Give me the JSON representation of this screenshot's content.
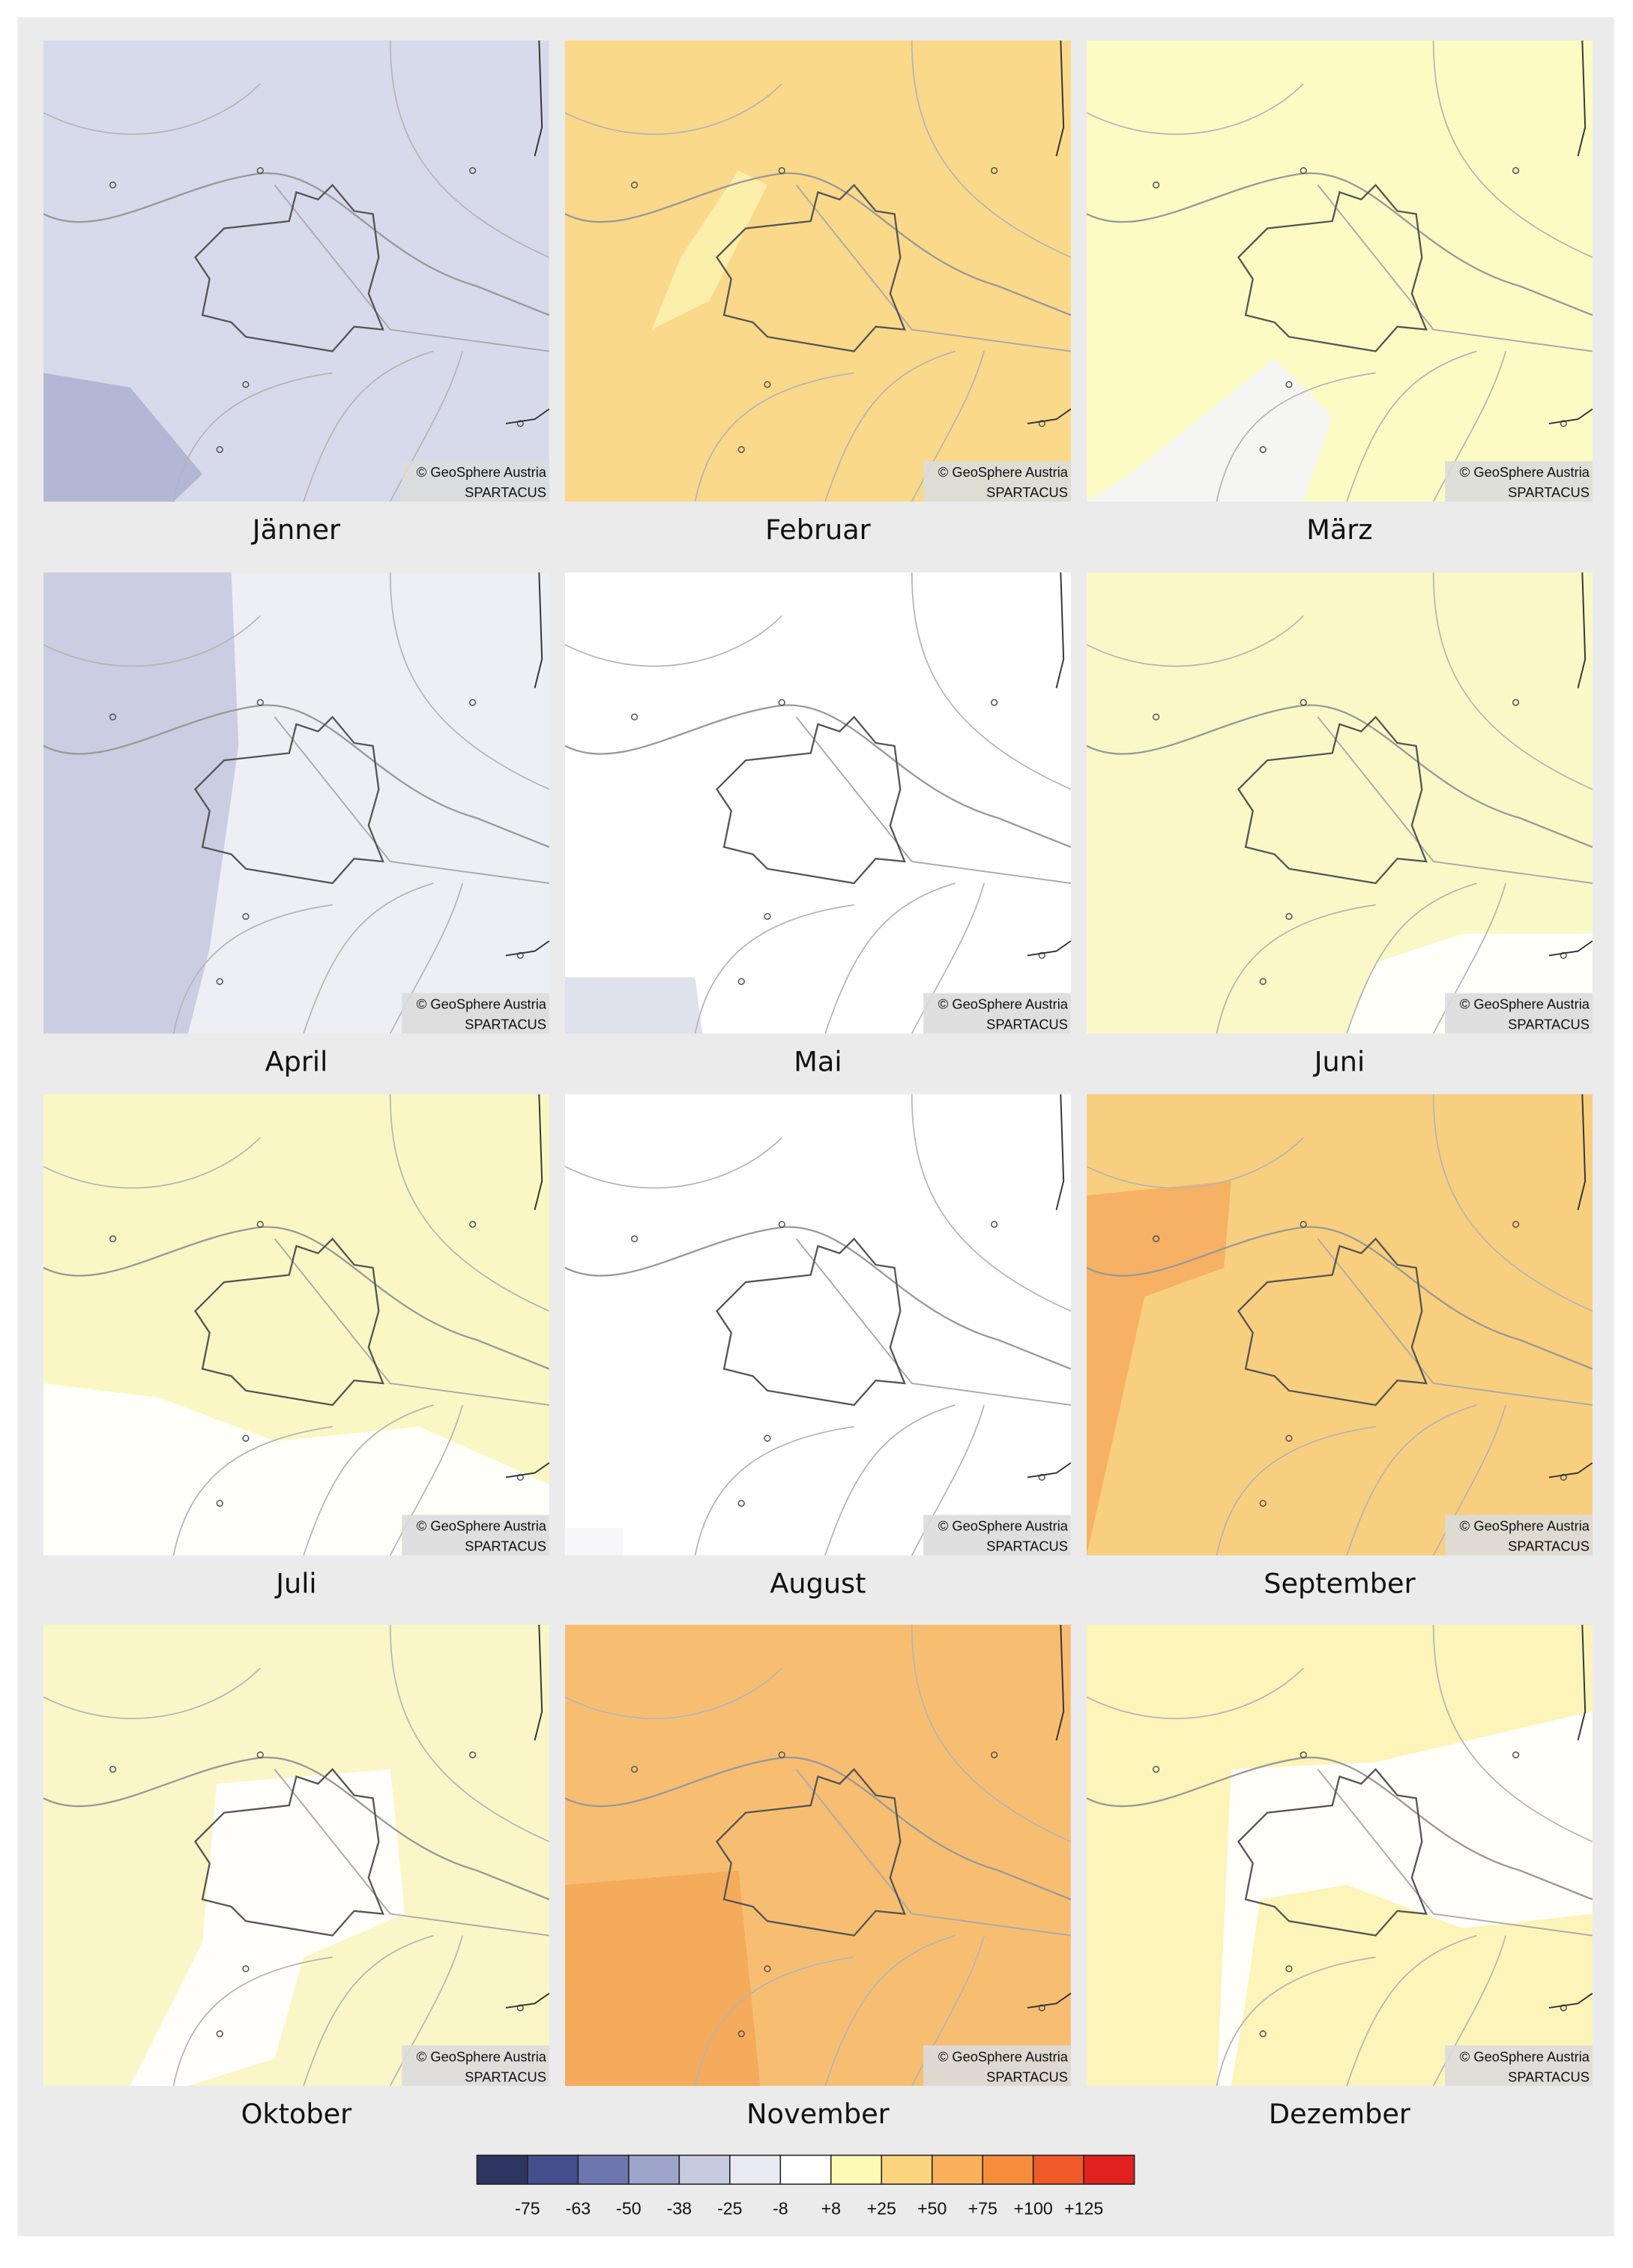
{
  "panels": [
    {
      "label": "Jänner",
      "credit": "© GeoSphere Austria",
      "source": "SPARTACUS",
      "color": "#d7daeb",
      "accent": "#aeb3d4"
    },
    {
      "label": "Februar",
      "credit": "© GeoSphere Austria",
      "source": "SPARTACUS",
      "color": "#fad98a",
      "accent": "#fcf0ae"
    },
    {
      "label": "März",
      "credit": "© GeoSphere Austria",
      "source": "SPARTACUS",
      "color": "#fdfbc4",
      "accent": "#f4f4f8"
    },
    {
      "label": "April",
      "credit": "© GeoSphere Austria",
      "source": "SPARTACUS",
      "color": "#eeeff5",
      "accent": "#c6c9e0"
    },
    {
      "label": "Mai",
      "credit": "© GeoSphere Austria",
      "source": "SPARTACUS",
      "color": "#ffffff",
      "accent": "#dcdeea"
    },
    {
      "label": "Juni",
      "credit": "© GeoSphere Austria",
      "source": "SPARTACUS",
      "color": "#fbf8c8",
      "accent": "#ffffff"
    },
    {
      "label": "Juli",
      "credit": "© GeoSphere Austria",
      "source": "SPARTACUS",
      "color": "#fbf7c4",
      "accent": "#ffffff"
    },
    {
      "label": "August",
      "credit": "© GeoSphere Austria",
      "source": "SPARTACUS",
      "color": "#ffffff",
      "accent": "#f6f6f8"
    },
    {
      "label": "September",
      "credit": "© GeoSphere Austria",
      "source": "SPARTACUS",
      "color": "#f8cf7e",
      "accent": "#f5ad62"
    },
    {
      "label": "Oktober",
      "credit": "© GeoSphere Austria",
      "source": "SPARTACUS",
      "color": "#fbf6c8",
      "accent": "#ffffff"
    },
    {
      "label": "November",
      "credit": "© GeoSphere Austria",
      "source": "SPARTACUS",
      "color": "#f7be72",
      "accent": "#f3a85a"
    },
    {
      "label": "Dezember",
      "credit": "© GeoSphere Austria",
      "source": "SPARTACUS",
      "color": "#fdf4ba",
      "accent": "#ffffff"
    }
  ],
  "legend": {
    "colors": [
      "#2e3560",
      "#454e8c",
      "#6d77ae",
      "#9ea4ca",
      "#c8cbe0",
      "#e9eaf2",
      "#ffffff",
      "#fdfbb6",
      "#fbd57e",
      "#f8b15a",
      "#f58d3c",
      "#f05a28",
      "#e1211f"
    ],
    "labels": [
      "-75",
      "-63",
      "-50",
      "-38",
      "-25",
      "-8",
      "+8",
      "+25",
      "+50",
      "+75",
      "+100",
      "+125"
    ]
  }
}
